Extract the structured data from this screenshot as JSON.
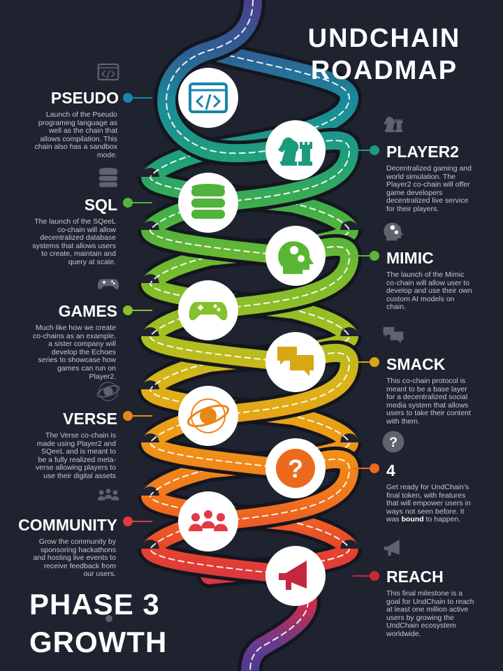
{
  "title_line1": "UNDCHAIN",
  "title_line2": "ROADMAP",
  "phase_line1": "PHASE 3",
  "phase_line2": "GROWTH",
  "colors": {
    "background": "#1f2330",
    "milestones": [
      "#1a85a8",
      "#1c9a7c",
      "#52b33c",
      "#5ab534",
      "#86c02e",
      "#d8a716",
      "#e8861a",
      "#ec6a1c",
      "#e23a44",
      "#c4283e"
    ]
  },
  "milestones": [
    {
      "side": "left",
      "label": "PSEUDO",
      "icon": "code-window-icon",
      "description": "Launch of the Pseudo programing language as well as the chain that allows compilation. This chain also has a sandbox mode."
    },
    {
      "side": "right",
      "label": "PLAYER2",
      "icon": "chess-pieces-icon",
      "description": "Decentralized gaming and world simulation. The Player2 co-chain will offer game developers decentralized live service for their players."
    },
    {
      "side": "left",
      "label": "SQL",
      "icon": "database-icon",
      "description": "The launch of the SQeeL co-chain will allow decentralized database systems that allows users to create, maintain and query at scale."
    },
    {
      "side": "right",
      "label": "MIMIC",
      "icon": "brain-gears-icon",
      "description": "The launch of the Mimic co-chain will allow user to develop and use their own custom AI models on chain."
    },
    {
      "side": "left",
      "label": "GAMES",
      "icon": "gamepad-icon",
      "description": "Much like how we create co-chains as an example, a sister company will develop the Echoes series to showcase how games can run on Player2."
    },
    {
      "side": "right",
      "label": "SMACK",
      "icon": "chat-bubbles-icon",
      "description": "This co-chain protocol is meant to be a base layer for a decentralized social media system that allows users to take their content with them."
    },
    {
      "side": "left",
      "label": "VERSE",
      "icon": "planet-orbit-icon",
      "description": "The Verse co-chain is made using Player2 and SQeeL and is meant to be a fully realized meta-verse allowing players to use their digital assets"
    },
    {
      "side": "right",
      "label": "4",
      "icon": "question-mark-icon",
      "description_pre": "Get ready for UndChain's final token, with features that will empower users in ways not seen before. It was ",
      "description_bold": "bound",
      "description_post": " to happen."
    },
    {
      "side": "left",
      "label": "COMMUNITY",
      "icon": "people-group-icon",
      "description": "Grow the community by sponsoring hackathons and hosting live events to receive feedback from our users."
    },
    {
      "side": "right",
      "label": "REACH",
      "icon": "megaphone-icon",
      "description": "This final milestone is a goal for UndChain to reach at least one million active users by growing the UndChain ecosystem worldwide."
    }
  ]
}
